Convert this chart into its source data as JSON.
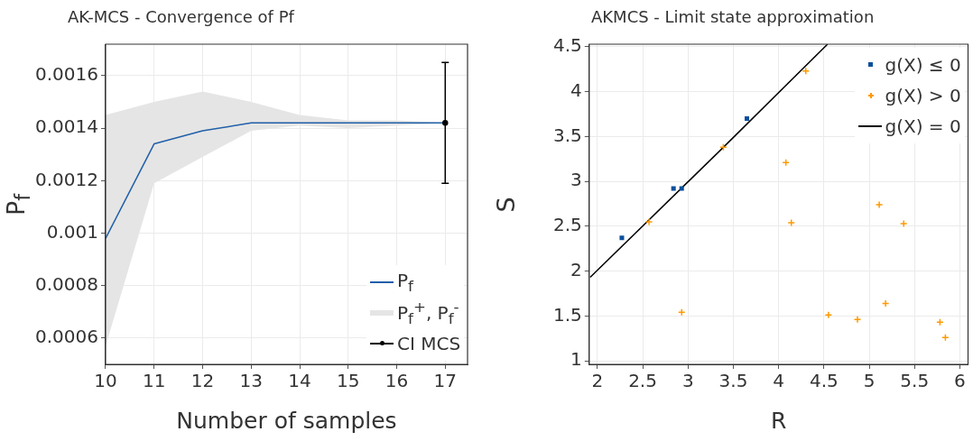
{
  "chart_data": [
    {
      "type": "line",
      "title": "AK-MCS - Convergence of Pf",
      "xlabel": "Number of samples",
      "ylabel": "P$_{f}$",
      "x": [
        10,
        11,
        12,
        13,
        14,
        15,
        16,
        17
      ],
      "xlim": [
        10,
        17.46
      ],
      "xticks": [
        10,
        11,
        12,
        13,
        14,
        15,
        16,
        17
      ],
      "ylim": [
        0.0005,
        0.00172
      ],
      "yticks": [
        0.0006,
        0.0008,
        0.001,
        0.0012,
        0.0014,
        0.0016
      ],
      "grid": true,
      "legend": "bottom right",
      "series": [
        {
          "name": "P$_{f}$",
          "color": "#1f5fa8",
          "values": [
            0.00098,
            0.00134,
            0.00139,
            0.00142,
            0.00142,
            0.00142,
            0.00142,
            0.00142
          ]
        },
        {
          "name": "P$_{f}$$^{+}$, P$_{f}$$^{-}$",
          "type": "area",
          "color": "#e5e5e5",
          "values": [
            null,
            null,
            null,
            null,
            null,
            null,
            null,
            null
          ],
          "upper": [
            0.00145,
            0.0015,
            0.00154,
            0.0015,
            0.00145,
            0.00143,
            0.00143,
            0.00142
          ],
          "lower": [
            0.00057,
            0.00119,
            0.00129,
            0.00139,
            0.00141,
            0.0014,
            0.00141,
            0.00142
          ]
        },
        {
          "name": "CI MCS",
          "type": "scatter",
          "color": "#000000",
          "marker": "circle",
          "x": [
            17
          ],
          "values": [
            0.00142
          ],
          "errors": [
            [
              0.00119,
              0.00165
            ]
          ]
        }
      ]
    },
    {
      "type": "scatter",
      "title": "AKMCS - Limit state approximation",
      "xlabel": "R",
      "ylabel": "S",
      "xlim": [
        1.91,
        6.09
      ],
      "xticks": [
        2,
        2.5,
        3,
        3.5,
        4,
        4.5,
        5,
        5.5,
        6
      ],
      "ylim": [
        0.96,
        4.53
      ],
      "yticks": [
        1,
        1.5,
        2,
        2.5,
        3,
        3.5,
        4,
        4.5
      ],
      "grid": true,
      "legend": "top right",
      "series": [
        {
          "name": "g(X) ≤ 0",
          "color": "#0b4f9c",
          "marker": "square",
          "x": [
            2.27,
            2.84,
            2.93,
            3.65
          ],
          "values": [
            2.37,
            2.92,
            2.92,
            3.7
          ]
        },
        {
          "name": "g(X) > 0",
          "color": "#ff9900",
          "marker": "cross",
          "x": [
            2.57,
            2.93,
            3.39,
            4.08,
            4.14,
            4.3,
            4.55,
            4.87,
            5.11,
            5.18,
            5.38,
            5.78,
            5.84
          ],
          "values": [
            2.55,
            1.54,
            3.38,
            3.21,
            2.54,
            4.23,
            1.51,
            1.46,
            2.74,
            1.64,
            2.53,
            1.43,
            1.26
          ]
        },
        {
          "name": "g(X) = 0",
          "type": "line",
          "color": "#000000",
          "x": [
            1.92,
            3.39,
            4.54
          ],
          "values": [
            1.93,
            3.38,
            4.53
          ]
        }
      ]
    }
  ]
}
